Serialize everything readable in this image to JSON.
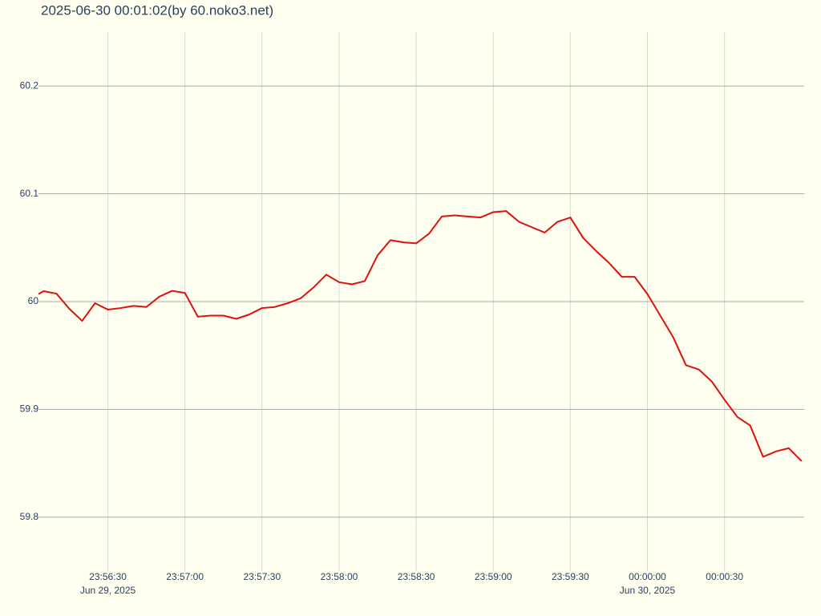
{
  "chart_data": {
    "type": "line",
    "title": "2025-06-30 00:01:02(by 60.noko3.net)",
    "color": "#dd1111",
    "grid": true,
    "xlim": [
      "2025-06-29 23:56:03",
      "2025-06-30 00:01:01"
    ],
    "ylim": [
      59.75,
      60.25
    ],
    "yticks": [
      59.8,
      59.9,
      60,
      60.1,
      60.2
    ],
    "xticks": [
      {
        "value": "2025-06-29 23:56:30",
        "label": "23:56:30",
        "date_label": "Jun 29, 2025"
      },
      {
        "value": "2025-06-29 23:57:00",
        "label": "23:57:00"
      },
      {
        "value": "2025-06-29 23:57:30",
        "label": "23:57:30"
      },
      {
        "value": "2025-06-29 23:58:00",
        "label": "23:58:00"
      },
      {
        "value": "2025-06-29 23:58:30",
        "label": "23:58:30"
      },
      {
        "value": "2025-06-29 23:59:00",
        "label": "23:59:00"
      },
      {
        "value": "2025-06-29 23:59:30",
        "label": "23:59:30"
      },
      {
        "value": "2025-06-30 00:00:00",
        "label": "00:00:00",
        "date_label": "Jun 30, 2025"
      },
      {
        "value": "2025-06-30 00:00:30",
        "label": "00:00:30"
      }
    ],
    "x": [
      "2025-06-29 23:56:03",
      "2025-06-29 23:56:05",
      "2025-06-29 23:56:10",
      "2025-06-29 23:56:15",
      "2025-06-29 23:56:20",
      "2025-06-29 23:56:25",
      "2025-06-29 23:56:30",
      "2025-06-29 23:56:35",
      "2025-06-29 23:56:40",
      "2025-06-29 23:56:45",
      "2025-06-29 23:56:50",
      "2025-06-29 23:56:55",
      "2025-06-29 23:57:00",
      "2025-06-29 23:57:05",
      "2025-06-29 23:57:10",
      "2025-06-29 23:57:15",
      "2025-06-29 23:57:20",
      "2025-06-29 23:57:25",
      "2025-06-29 23:57:30",
      "2025-06-29 23:57:35",
      "2025-06-29 23:57:40",
      "2025-06-29 23:57:45",
      "2025-06-29 23:57:50",
      "2025-06-29 23:57:55",
      "2025-06-29 23:58:00",
      "2025-06-29 23:58:05",
      "2025-06-29 23:58:10",
      "2025-06-29 23:58:15",
      "2025-06-29 23:58:20",
      "2025-06-29 23:58:25",
      "2025-06-29 23:58:30",
      "2025-06-29 23:58:35",
      "2025-06-29 23:58:40",
      "2025-06-29 23:58:45",
      "2025-06-29 23:58:50",
      "2025-06-29 23:58:55",
      "2025-06-29 23:59:00",
      "2025-06-29 23:59:05",
      "2025-06-29 23:59:10",
      "2025-06-29 23:59:15",
      "2025-06-29 23:59:20",
      "2025-06-29 23:59:25",
      "2025-06-29 23:59:30",
      "2025-06-29 23:59:35",
      "2025-06-29 23:59:40",
      "2025-06-29 23:59:45",
      "2025-06-29 23:59:50",
      "2025-06-29 23:59:55",
      "2025-06-30 00:00:00",
      "2025-06-30 00:00:05",
      "2025-06-30 00:00:10",
      "2025-06-30 00:00:15",
      "2025-06-30 00:00:20",
      "2025-06-30 00:00:25",
      "2025-06-30 00:00:30",
      "2025-06-30 00:00:35",
      "2025-06-30 00:00:40",
      "2025-06-30 00:00:45",
      "2025-06-30 00:00:50",
      "2025-06-30 00:00:55",
      "2025-06-30 00:01:00"
    ],
    "values": [
      60.007,
      60.0097,
      60.0074,
      59.9933,
      59.9821,
      59.9985,
      59.9926,
      59.994,
      59.996,
      59.995,
      60.0045,
      60.01,
      60.008,
      59.986,
      59.987,
      59.987,
      59.984,
      59.988,
      59.994,
      59.995,
      59.9985,
      60.003,
      60.013,
      60.025,
      60.018,
      60.016,
      60.019,
      60.043,
      60.057,
      60.055,
      60.054,
      60.063,
      60.079,
      60.08,
      60.079,
      60.078,
      60.083,
      60.084,
      60.074,
      60.069,
      60.064,
      60.074,
      60.078,
      60.059,
      60.047,
      60.036,
      60.023,
      60.023,
      60.007,
      59.987,
      59.967,
      59.941,
      59.937,
      59.926,
      59.909,
      59.893,
      59.885,
      59.856,
      59.861,
      59.864,
      59.852
    ]
  }
}
